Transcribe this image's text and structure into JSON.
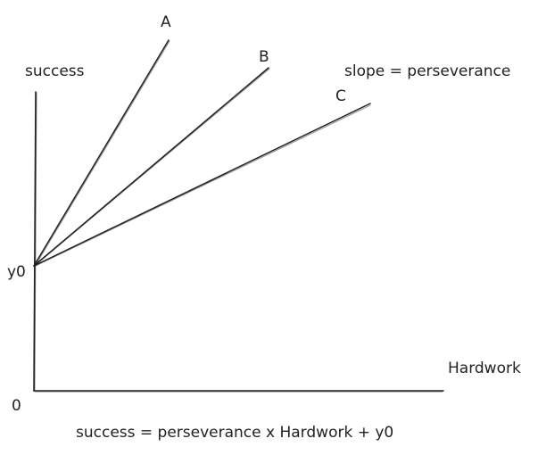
{
  "labels": {
    "y_axis": "success",
    "x_axis": "Hardwork",
    "origin": "0",
    "intercept": "y0",
    "slope_note": "slope = perseverance",
    "formula": "success = perseverance x Hardwork + y0"
  },
  "lines": [
    {
      "name": "A"
    },
    {
      "name": "B"
    },
    {
      "name": "C"
    }
  ],
  "colors": {
    "ink": "#222222",
    "background": "#ffffff"
  }
}
